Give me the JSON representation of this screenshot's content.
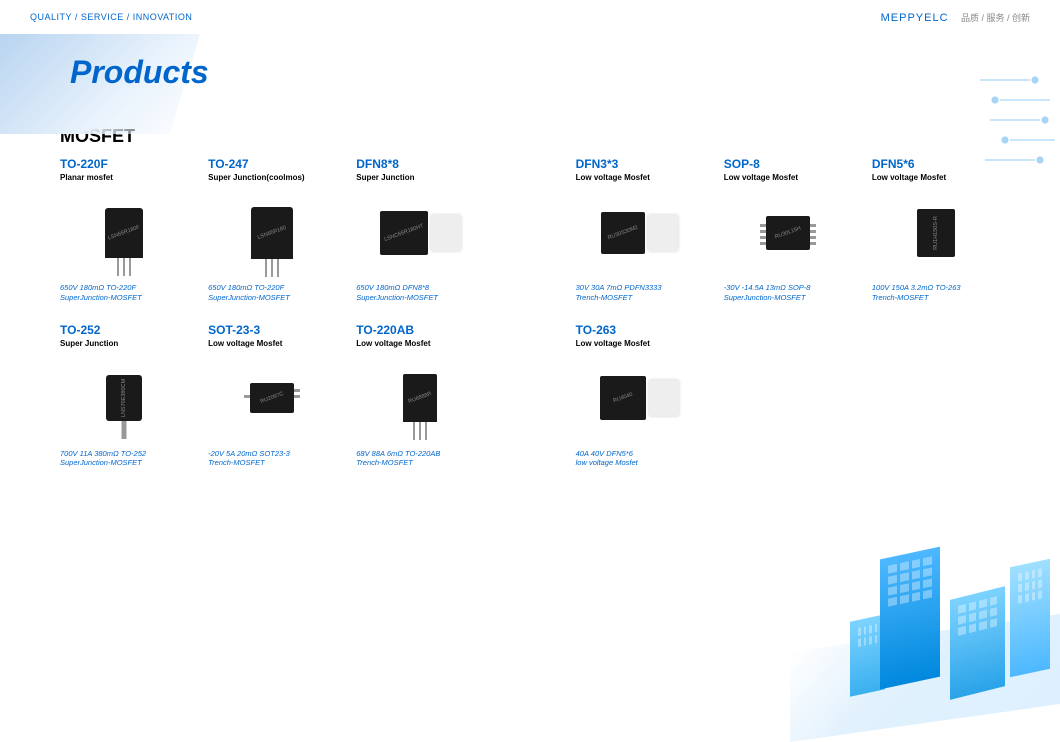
{
  "header": {
    "tagline": "QUALITY / SERVICE / INNOVATION",
    "brand": "MEPPYELC",
    "brand_sub": "品质 / 服务 / 创新"
  },
  "page_title": "Products",
  "section_title": "MOSFET",
  "products_row1": [
    {
      "name": "TO-220F",
      "sub": "Planar mosfet",
      "desc1": "650V 180mΩ TO-220F",
      "desc2": "SuperJunction-MOSFET",
      "chipcls": "to220f",
      "label": "LSN65R180F"
    },
    {
      "name": "TO-247",
      "sub": "Super Junction(coolmos)",
      "desc1": "650V 180mΩ TO-220F",
      "desc2": "SuperJunction-MOSFET",
      "chipcls": "to247",
      "label": "LSN65R180"
    },
    {
      "name": "DFN8*8",
      "sub": "Super Junction",
      "desc1": "650V 180mΩ DFN8*8",
      "desc2": "SuperJunction-MOSFET",
      "chipcls": "dfn88",
      "label": "LSNC65R180HT"
    },
    {
      "name": "DFN3*3",
      "sub": "Low voltage Mosfet",
      "desc1": "30V 30A 7mΩ PDFN3333",
      "desc2": "Trench-MOSFET",
      "chipcls": "dfn33",
      "label": "RU30S30M2"
    },
    {
      "name": "SOP-8",
      "sub": "Low voltage Mosfet",
      "desc1": "-30V -14.5A 13mΩ SOP-8",
      "desc2": "SuperJunction-MOSFET",
      "chipcls": "sop8",
      "label": "RU30L15H"
    },
    {
      "name": "DFN5*6",
      "sub": "Low voltage Mosfet",
      "desc1": "100V 150A 3.2mΩ TO-263",
      "desc2": "Trench-MOSFET",
      "chipcls": "dfn56",
      "label": "RU1H150S-R"
    }
  ],
  "products_row2": [
    {
      "name": "TO-252",
      "sub": "Super Junction",
      "desc1": "700V 11A 380mΩ TO-252",
      "desc2": "SuperJunction-MOSFET",
      "chipcls": "to252",
      "label": "LNS70E380CM"
    },
    {
      "name": "SOT-23-3",
      "sub": "Low voltage Mosfet",
      "desc1": "-20V 5A 20mΩ SOT23-3",
      "desc2": "Trench-MOSFET",
      "chipcls": "sot23",
      "label": "RU2097C"
    },
    {
      "name": "TO-220AB",
      "sub": "Low voltage Mosfet",
      "desc1": "68V 88A 6mΩ TO-220AB",
      "desc2": "Trench-MOSFET",
      "chipcls": "to220ab",
      "label": "RU6888R"
    },
    {
      "name": "TO-263",
      "sub": "Low voltage Mosfet",
      "desc1": "40A 40V DFN5*6",
      "desc2": "low voltage Mosfet",
      "chipcls": "to263",
      "label": "RU4040"
    }
  ],
  "colors": {
    "brand_blue": "#0066cc",
    "text_black": "#000000",
    "bg_white": "#ffffff",
    "chip_dark": "#1a1a1a",
    "city_blue1": "#4db8ff",
    "city_blue2": "#0088dd"
  }
}
